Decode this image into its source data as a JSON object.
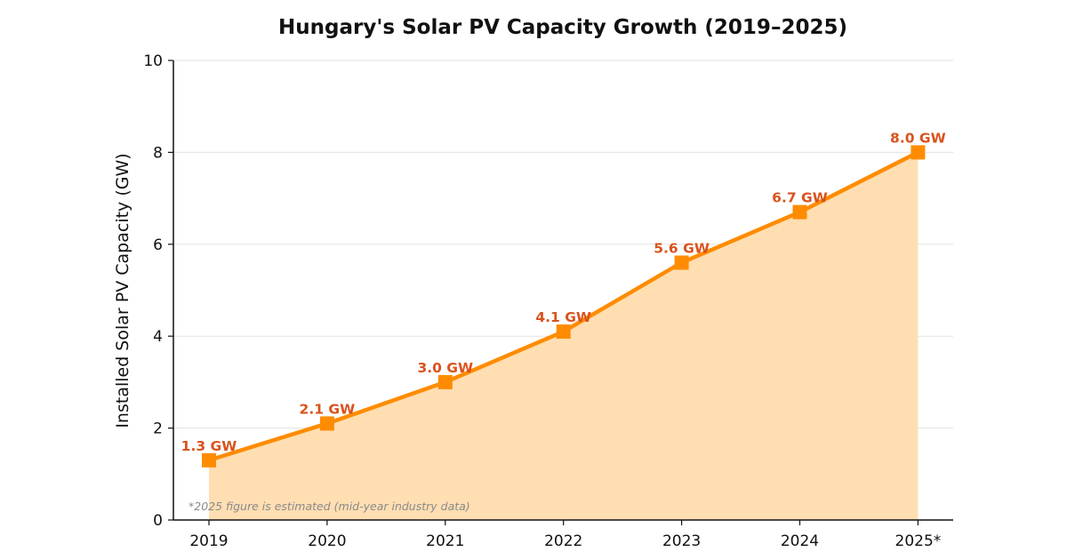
{
  "chart_data": {
    "type": "line",
    "title": "Hungary's Solar PV Capacity Growth (2019–2025)",
    "xlabel": "",
    "ylabel": "Installed Solar PV Capacity (GW)",
    "categories": [
      "2019",
      "2020",
      "2021",
      "2022",
      "2023",
      "2024",
      "2025*"
    ],
    "series": [
      {
        "name": "Installed Solar PV Capacity",
        "values": [
          1.3,
          2.1,
          3.0,
          4.1,
          5.6,
          6.7,
          8.0
        ],
        "labels": [
          "1.3 GW",
          "2.1 GW",
          "3.0 GW",
          "4.1 GW",
          "5.6 GW",
          "6.7 GW",
          "8.0 GW"
        ],
        "marker": "square",
        "area_fill": true
      }
    ],
    "ylim": [
      0,
      10
    ],
    "yticks": [
      0,
      2,
      4,
      6,
      8,
      10
    ],
    "grid": "horizontal",
    "legend": "none",
    "annotation": "*2025 figure is estimated (mid-year industry data)",
    "colors": {
      "line": "#FF8C00",
      "area": "#FFDCAE",
      "label": "#D9531E",
      "grid": "#E3E3E3",
      "axis": "#111111",
      "note": "#8A8A8A"
    }
  }
}
